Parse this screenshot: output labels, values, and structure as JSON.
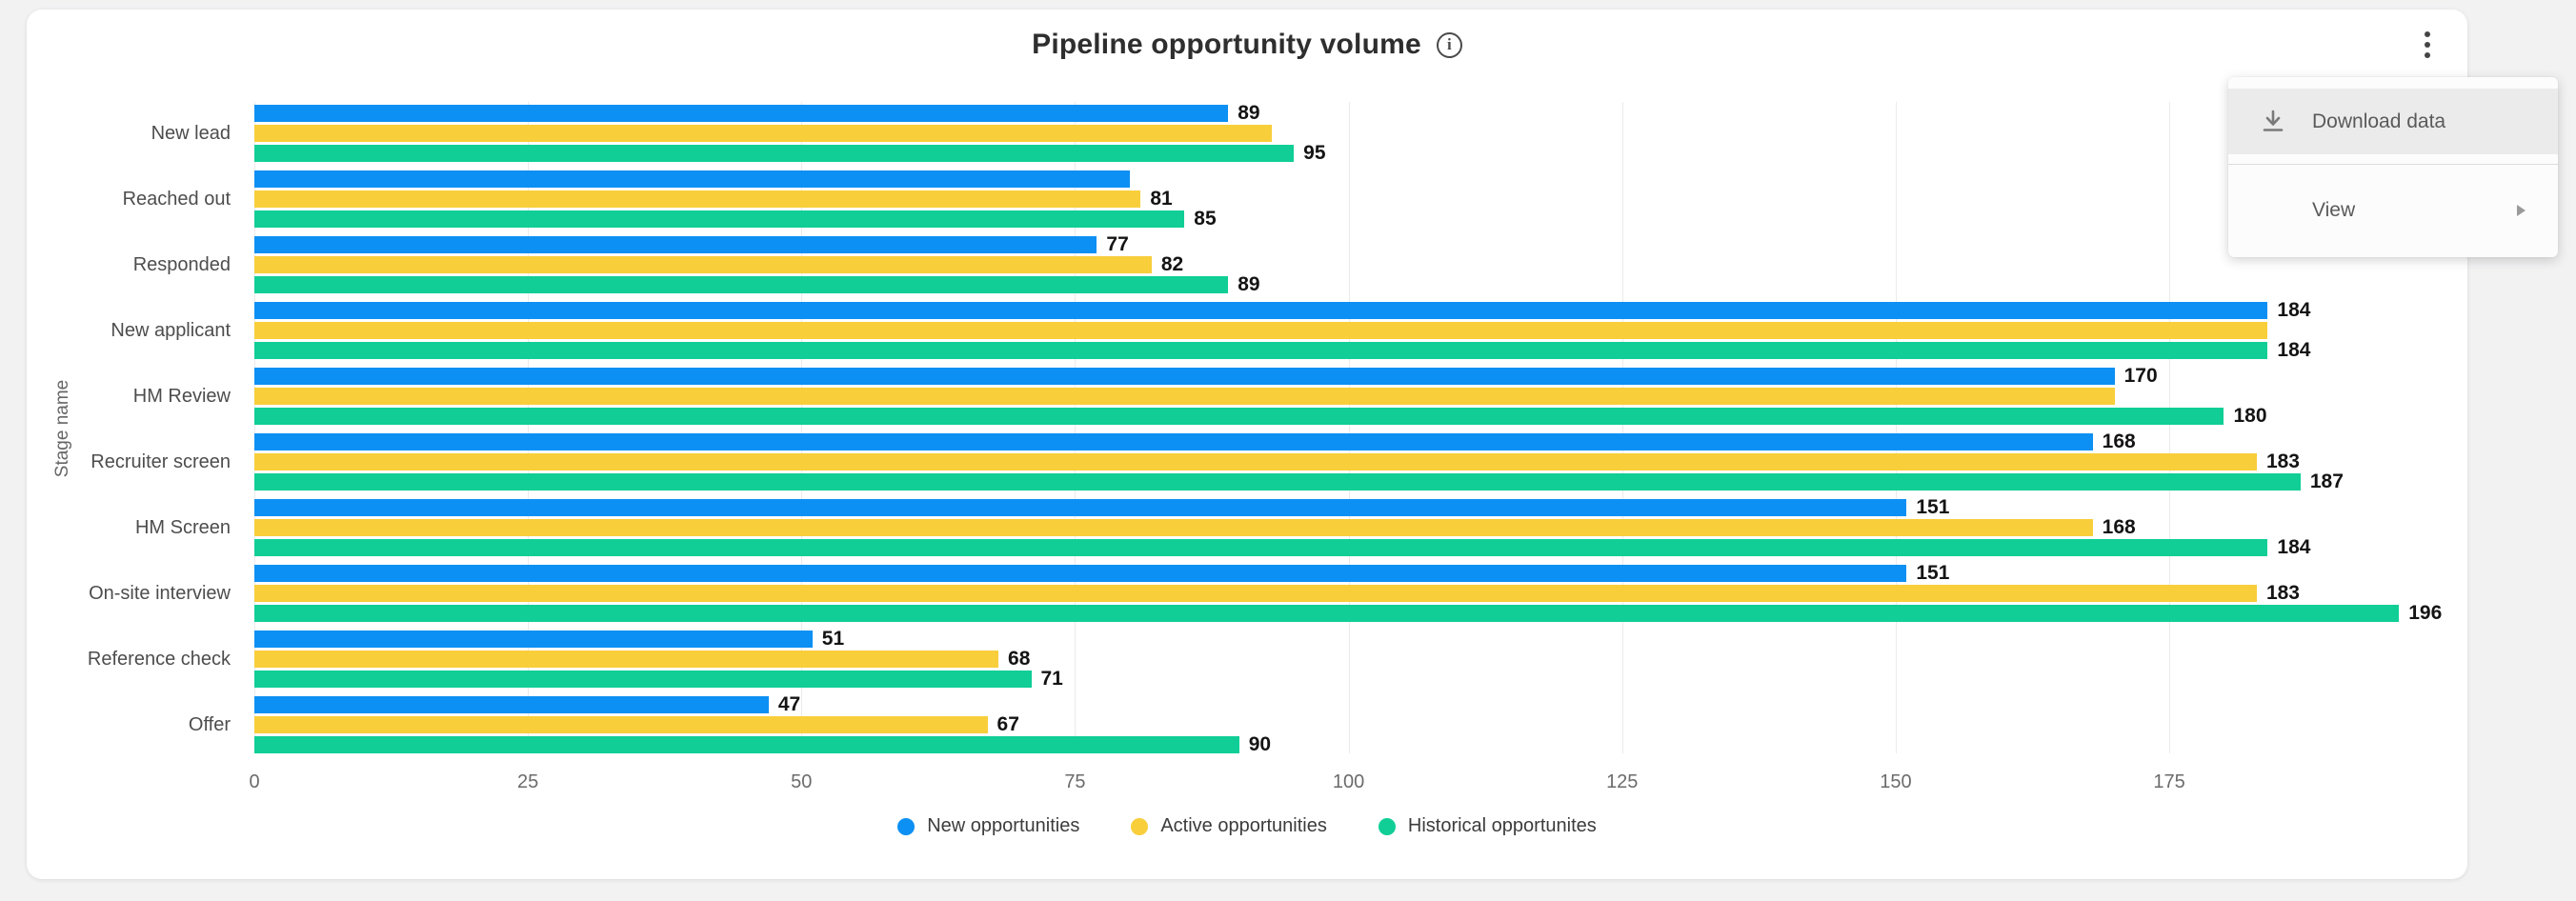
{
  "header": {
    "title": "Pipeline opportunity volume"
  },
  "menu": {
    "items": [
      {
        "label": "Download data",
        "icon": "download-icon",
        "highlighted": true,
        "has_submenu": false
      },
      {
        "label": "View",
        "icon": null,
        "highlighted": false,
        "has_submenu": true
      }
    ]
  },
  "chart_data": {
    "type": "bar",
    "orientation": "horizontal",
    "title": "Pipeline opportunity volume",
    "xlabel": "",
    "ylabel": "Stage name",
    "xlim": [
      0,
      200
    ],
    "x_ticks": [
      0,
      25,
      50,
      75,
      100,
      125,
      150,
      175
    ],
    "grid": true,
    "legend_position": "bottom",
    "categories": [
      "New lead",
      "Reached out",
      "Responded",
      "New applicant",
      "HM Review",
      "Recruiter screen",
      "HM Screen",
      "On-site interview",
      "Reference check",
      "Offer"
    ],
    "series": [
      {
        "name": "New opportunities",
        "color": "#0D90F3",
        "values": [
          89,
          80,
          77,
          184,
          170,
          168,
          151,
          151,
          51,
          47
        ],
        "labels": [
          "89",
          null,
          "77",
          "184",
          "170",
          "168",
          "151",
          "151",
          "51",
          "47"
        ]
      },
      {
        "name": "Active opportunities",
        "color": "#F8CE3B",
        "values": [
          93,
          81,
          82,
          184,
          170,
          183,
          168,
          183,
          68,
          67
        ],
        "labels": [
          null,
          "81",
          "82",
          null,
          null,
          "183",
          "168",
          "183",
          "68",
          "67"
        ]
      },
      {
        "name": "Historical opportunites",
        "color": "#10CE96",
        "values": [
          95,
          85,
          89,
          184,
          180,
          187,
          184,
          196,
          71,
          90
        ],
        "labels": [
          "95",
          "85",
          "89",
          "184",
          "180",
          "187",
          "184",
          "196",
          "71",
          "90"
        ]
      }
    ]
  }
}
